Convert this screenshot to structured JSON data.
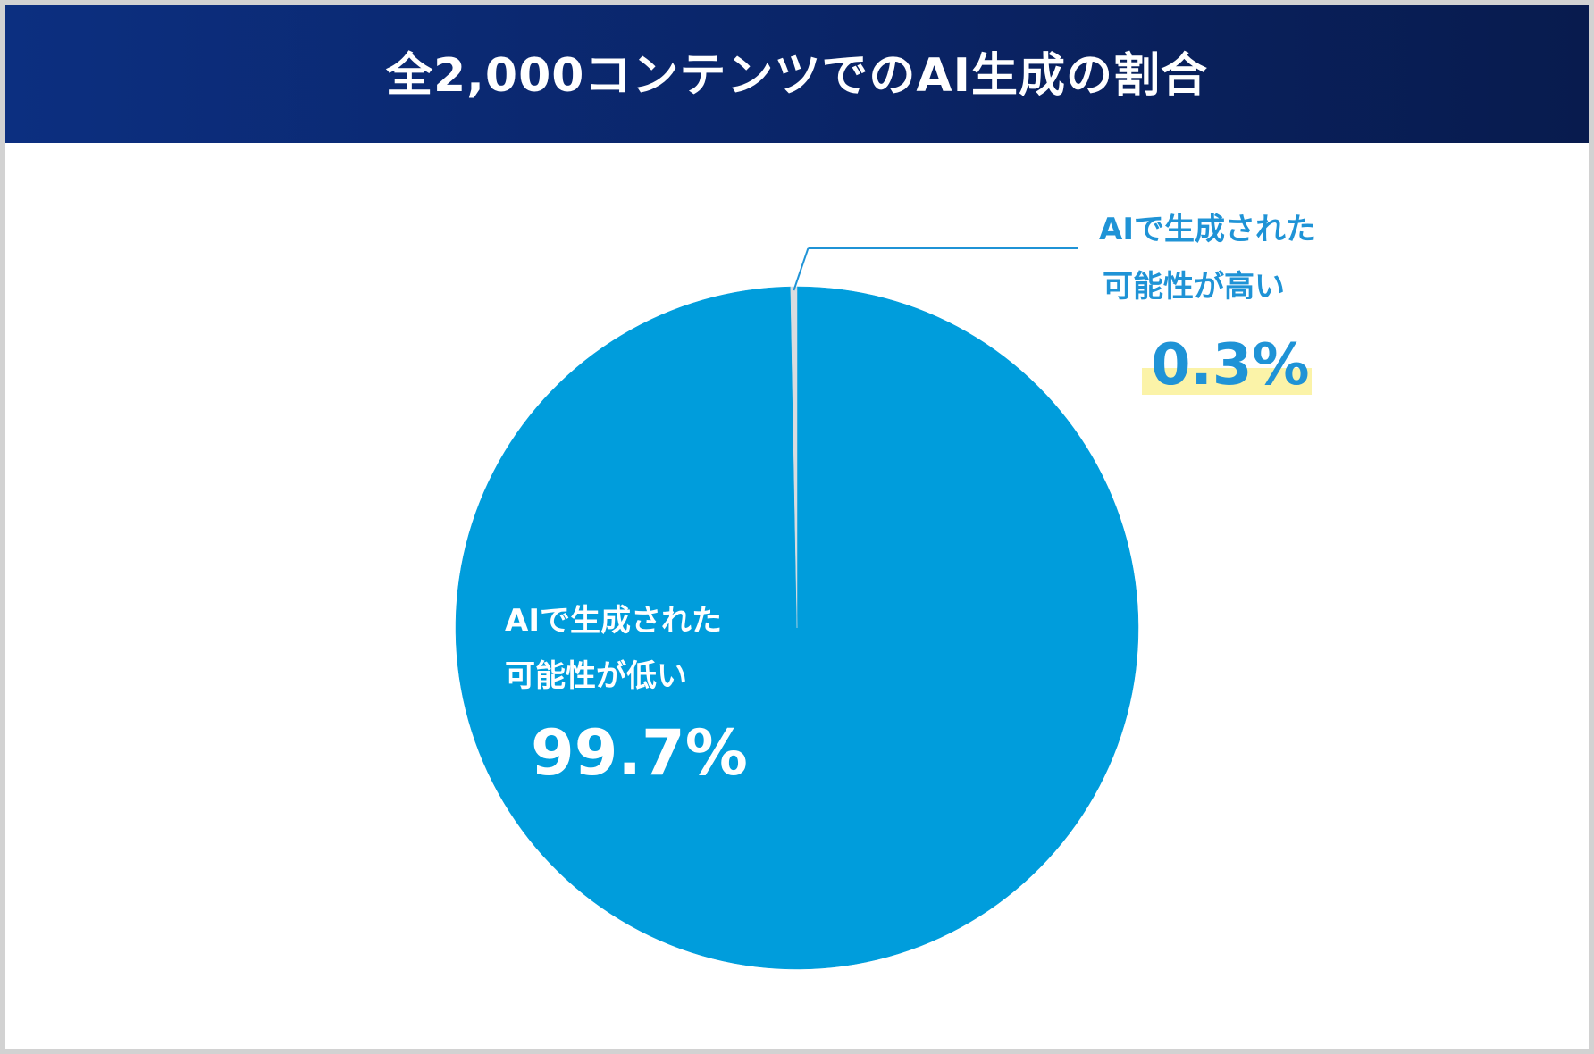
{
  "header": {
    "title": "全2,000コンテンツでのAI生成の割合"
  },
  "chart_data": {
    "type": "pie",
    "title": "全2,000コンテンツでのAI生成の割合",
    "slices": [
      {
        "label_line1": "AIで生成された",
        "label_line2": "可能性が低い",
        "value": 99.7,
        "value_label": "99.7%",
        "color": "#009ddc"
      },
      {
        "label_line1": "AIで生成された",
        "label_line2": "可能性が高い",
        "value": 0.3,
        "value_label": "0.3%",
        "color": "#d9dcdf"
      }
    ],
    "colors": {
      "inner_label_text": "#ffffff",
      "outer_label_text": "#1f93d6",
      "leader_line": "#1f93d6",
      "value_highlight": "#fbf3a8"
    }
  }
}
